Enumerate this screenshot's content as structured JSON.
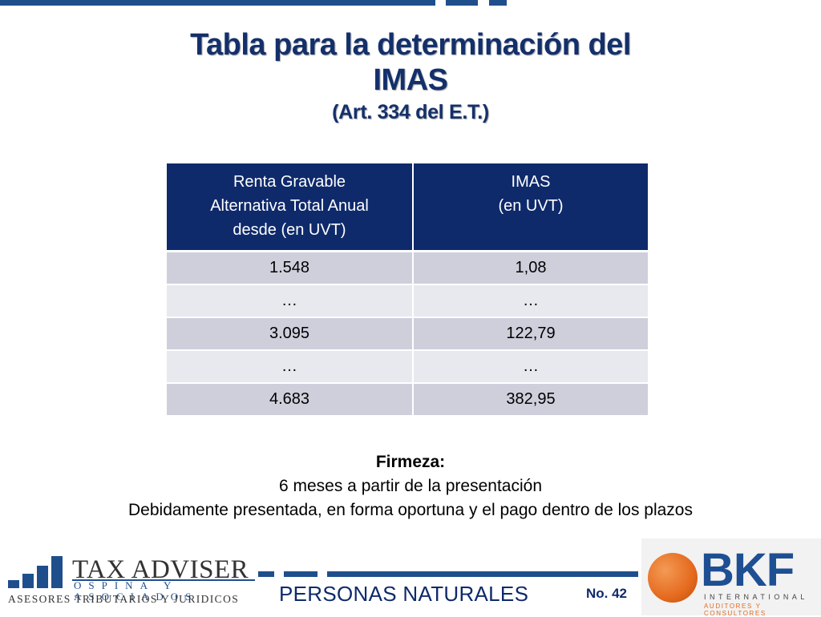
{
  "slide": {
    "title_line1": "Tabla para la determinación del",
    "title_line2": "IMAS",
    "subtitle": "(Art. 334 del E.T.)"
  },
  "table": {
    "headers": [
      [
        "Renta Gravable",
        "Alternativa Total Anual",
        "desde (en UVT)"
      ],
      [
        "IMAS",
        "(en UVT)"
      ]
    ],
    "rows": [
      [
        "1.548",
        "1,08"
      ],
      [
        "…",
        "…"
      ],
      [
        "3.095",
        "122,79"
      ],
      [
        "…",
        "…"
      ],
      [
        "4.683",
        "382,95"
      ]
    ]
  },
  "firmeza": {
    "label": "Firmeza:",
    "line1": "6 meses a partir de la presentación",
    "line2": "Debidamente presentada, en forma oportuna y el pago dentro de los plazos"
  },
  "footer": {
    "section_title": "PERSONAS NATURALES",
    "page_number": "No. 42",
    "left_logo": {
      "name": "TAX ADVISER",
      "sub": "OSPINA Y ASOCIADOS",
      "tagline": "ASESORES TRIBUTARIOS Y JURIDICOS",
      "icon": "bar-chart-icon"
    },
    "right_logo": {
      "name": "BKF",
      "line1": "INTERNATIONAL",
      "line2": "AUDITORES Y CONSULTORES",
      "icon": "globe-icon"
    }
  },
  "colors": {
    "navy": "#0f2a6b",
    "accent_blue": "#1f4e8c",
    "row_dark": "#cfcfdc",
    "row_light": "#e8e8ef",
    "bkf_orange": "#e56a1e"
  }
}
